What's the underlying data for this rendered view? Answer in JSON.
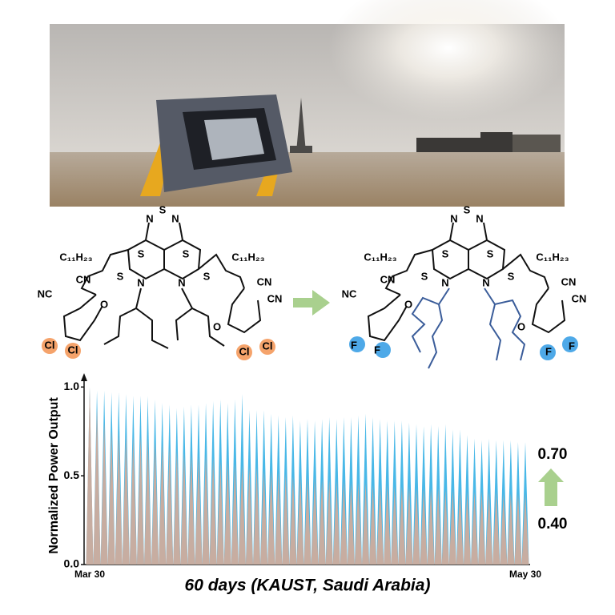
{
  "figure": {
    "molecules": [
      {
        "labels": [
          "S",
          "N",
          "N",
          "C₁₁H₂₃",
          "C₁₁H₂₃",
          "S",
          "S",
          "S",
          "S",
          "N",
          "N",
          "CN",
          "NC",
          "O",
          "Cl",
          "Cl",
          "O",
          "CN",
          "CN",
          "Cl",
          "Cl"
        ]
      },
      {
        "labels": [
          "S",
          "N",
          "N",
          "C₁₁H₂₃",
          "C₁₁H₂₃",
          "S",
          "S",
          "S",
          "S",
          "N",
          "N",
          "CN",
          "NC",
          "O",
          "F",
          "F",
          "O",
          "CN",
          "CN",
          "F",
          "F"
        ]
      }
    ]
  },
  "chart_data": {
    "type": "spike",
    "y_label": "Normalized Power Output",
    "x_label": "60 days (KAUST, Saudi Arabia)",
    "categories": [
      "Mar 30",
      null,
      null,
      null,
      null,
      null,
      null,
      null,
      null,
      null,
      null,
      null,
      null,
      null,
      null,
      null,
      null,
      null,
      null,
      null,
      null,
      null,
      null,
      null,
      null,
      null,
      null,
      null,
      null,
      null,
      null,
      null,
      null,
      null,
      null,
      null,
      null,
      null,
      null,
      null,
      null,
      null,
      null,
      null,
      null,
      null,
      null,
      null,
      null,
      null,
      null,
      null,
      null,
      null,
      null,
      null,
      null,
      null,
      null,
      null,
      "May 30"
    ],
    "series": [
      {
        "color": "#3fb4e6",
        "values": [
          1.0,
          0.98,
          0.98,
          0.97,
          0.97,
          0.96,
          0.95,
          0.95,
          0.95,
          0.93,
          0.91,
          0.9,
          0.88,
          0.89,
          0.9,
          0.9,
          0.91,
          0.92,
          0.93,
          0.91,
          0.93,
          0.96,
          0.87,
          0.87,
          0.87,
          0.85,
          0.84,
          0.83,
          0.84,
          0.81,
          0.82,
          0.81,
          0.82,
          0.83,
          0.82,
          0.83,
          0.83,
          0.84,
          0.85,
          0.83,
          0.82,
          0.81,
          0.81,
          0.81,
          0.8,
          0.79,
          0.78,
          0.79,
          0.78,
          0.79,
          0.76,
          0.76,
          0.73,
          0.71,
          0.7,
          0.71,
          0.7,
          0.7,
          0.7,
          0.69,
          0.69
        ]
      },
      {
        "color": "#f2a98a",
        "values": [
          1.0,
          0.88,
          0.8,
          0.75,
          0.74,
          0.73,
          0.72,
          0.72,
          0.71,
          0.69,
          0.68,
          0.66,
          0.64,
          0.63,
          0.62,
          0.61,
          0.62,
          0.6,
          0.58,
          0.58,
          0.57,
          0.56,
          0.55,
          0.55,
          0.53,
          0.53,
          0.52,
          0.51,
          0.5,
          0.5,
          0.49,
          0.49,
          0.48,
          0.48,
          0.47,
          0.47,
          0.46,
          0.46,
          0.46,
          0.45,
          0.45,
          0.45,
          0.44,
          0.44,
          0.44,
          0.43,
          0.43,
          0.43,
          0.43,
          0.42,
          0.42,
          0.42,
          0.41,
          0.41,
          0.41,
          0.41,
          0.41,
          0.4,
          0.4,
          0.4,
          0.4
        ]
      }
    ],
    "ylim": [
      0,
      1.06
    ],
    "yticks": [
      {
        "value": 0,
        "label": "0.0"
      },
      {
        "value": 0.5,
        "label": "0.5"
      },
      {
        "value": 1,
        "label": "1.0"
      }
    ],
    "annotations": [
      "0.70",
      "0.40"
    ]
  }
}
